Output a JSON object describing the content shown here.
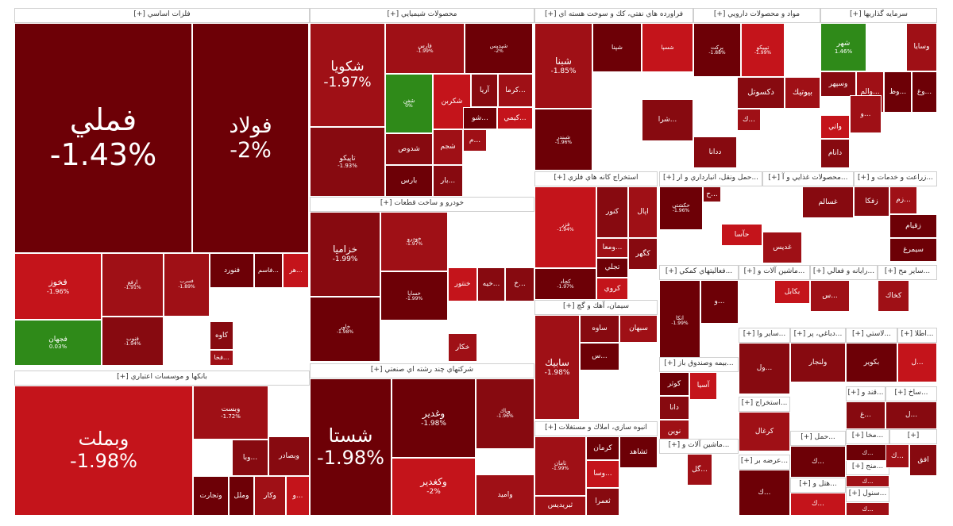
{
  "colors": {
    "deep": "#6d0006",
    "dark": "#870a10",
    "mid": "#9f1016",
    "bright": "#c4141b",
    "up": "#2f8a19",
    "black": "#4a0006",
    "pale": "#ffffff"
  },
  "chart_data": {
    "type": "treemap",
    "title": "",
    "value_unit": "% daily change",
    "sectors": [
      {
        "name": "فلزات اساسي [+]",
        "tiles": [
          {
            "symbol": "فملي",
            "change": "-1.43%"
          },
          {
            "symbol": "فولاد",
            "change": "-2%"
          },
          {
            "symbol": "فخوز",
            "change": "-1.96%"
          },
          {
            "symbol": "فجهان",
            "change": "0.03%"
          },
          {
            "symbol": "ارفع",
            "change": "-1.91%"
          },
          {
            "symbol": "فنوب",
            "change": "-1.94%"
          },
          {
            "symbol": "فسرب",
            "change": "-1.89%"
          },
          {
            "symbol": "فنورد",
            "change": ""
          },
          {
            "symbol": "...فاسم",
            "change": ""
          },
          {
            "symbol": "...هر",
            "change": ""
          },
          {
            "symbol": "كاوه",
            "change": ""
          },
          {
            "symbol": "...فخا",
            "change": ""
          }
        ]
      },
      {
        "name": "بانكها و موسسات اعتباري [+]",
        "tiles": [
          {
            "symbol": "وبملت",
            "change": "-1.98%"
          },
          {
            "symbol": "وبصادر",
            "change": ""
          },
          {
            "symbol": "وبست",
            "change": "-1.72%"
          },
          {
            "symbol": "...وبا",
            "change": ""
          },
          {
            "symbol": "وكار",
            "change": ""
          },
          {
            "symbol": "وتجارت",
            "change": ""
          },
          {
            "symbol": "وملل",
            "change": ""
          },
          {
            "symbol": "...و",
            "change": ""
          }
        ]
      },
      {
        "name": "محصولات شيميايي [+]",
        "tiles": [
          {
            "symbol": "شكويا",
            "change": "-1.97%"
          },
          {
            "symbol": "تاپيكو",
            "change": "-1.93%"
          },
          {
            "symbol": "فارس",
            "change": "-1.99%"
          },
          {
            "symbol": "شپديس",
            "change": "-2%"
          },
          {
            "symbol": "شفن",
            "change": "0%"
          },
          {
            "symbol": "شكربن",
            "change": ""
          },
          {
            "symbol": "آريا",
            "change": ""
          },
          {
            "symbol": "...كرما",
            "change": ""
          },
          {
            "symbol": "شدوص",
            "change": ""
          },
          {
            "symbol": "شجم",
            "change": ""
          },
          {
            "symbol": "بارس",
            "change": ""
          },
          {
            "symbol": "...شو",
            "change": ""
          },
          {
            "symbol": "...كيمي",
            "change": ""
          },
          {
            "symbol": "...بار",
            "change": ""
          },
          {
            "symbol": "...م",
            "change": ""
          }
        ]
      },
      {
        "name": "فراورده هاي نفتي، كك و سوخت هسته اي [+]",
        "tiles": [
          {
            "symbol": "شبنا",
            "change": "-1.85%"
          },
          {
            "symbol": "شبندر",
            "change": "-1.96%"
          },
          {
            "symbol": "شپنا",
            "change": ""
          },
          {
            "symbol": "شسپا",
            "change": ""
          },
          {
            "symbol": "...شرا",
            "change": ""
          }
        ]
      },
      {
        "name": "مواد و محصولات دارويي [+]",
        "tiles": [
          {
            "symbol": "بركت",
            "change": "-1.88%"
          },
          {
            "symbol": "تيپيكو",
            "change": "-1.99%"
          },
          {
            "symbol": "دكسوتل",
            "change": ""
          },
          {
            "symbol": "بيوتيك",
            "change": ""
          },
          {
            "symbol": "ددانا",
            "change": ""
          },
          {
            "symbol": "...ك",
            "change": ""
          }
        ]
      },
      {
        "name": "سرمايه گذاريها [+]",
        "tiles": [
          {
            "symbol": "شهر",
            "change": "1.46%"
          },
          {
            "symbol": "وسايا",
            "change": ""
          },
          {
            "symbol": "وسپهر",
            "change": ""
          },
          {
            "symbol": "...والم",
            "change": ""
          },
          {
            "symbol": "...وظ",
            "change": ""
          },
          {
            "symbol": "...وغ",
            "change": ""
          },
          {
            "symbol": "واتي",
            "change": ""
          },
          {
            "symbol": "دانام",
            "change": ""
          },
          {
            "symbol": "...و",
            "change": ""
          }
        ]
      },
      {
        "name": "خودرو و ساخت قطعات [+]",
        "tiles": [
          {
            "symbol": "خزاميا",
            "change": "-1.99%"
          },
          {
            "symbol": "خودرو",
            "change": "-1.97%"
          },
          {
            "symbol": "خاور",
            "change": "-1.98%"
          },
          {
            "symbol": "خساپا",
            "change": "-1.99%"
          },
          {
            "symbol": "خنتور",
            "change": ""
          },
          {
            "symbol": "...خيه",
            "change": ""
          },
          {
            "symbol": "خكار",
            "change": ""
          },
          {
            "symbol": "...خ",
            "change": ""
          }
        ]
      },
      {
        "name": "شركتهاي چند رشته اي صنعتي [+]",
        "tiles": [
          {
            "symbol": "شستا",
            "change": "-1.98%"
          },
          {
            "symbol": "وغدير",
            "change": "-1.98%"
          },
          {
            "symbol": "وكغدير",
            "change": "-2%"
          },
          {
            "symbol": "وپاك",
            "change": "-1.96%"
          },
          {
            "symbol": "واميد",
            "change": ""
          }
        ]
      },
      {
        "name": "استخراج كانه هاي فلزي [+]",
        "tiles": [
          {
            "symbol": "فزر",
            "change": "-1.94%"
          },
          {
            "symbol": "كنور",
            "change": ""
          },
          {
            "symbol": "اپال",
            "change": ""
          },
          {
            "symbol": "كگهر",
            "change": ""
          },
          {
            "symbol": "...ومعا",
            "change": ""
          },
          {
            "symbol": "كچاد",
            "change": "-1.97%"
          },
          {
            "symbol": "تجلي",
            "change": ""
          },
          {
            "symbol": "كروي",
            "change": ""
          }
        ]
      },
      {
        "name": "سيمان، آهك و گچ [+]",
        "tiles": [
          {
            "symbol": "سابيك",
            "change": "-1.98%"
          },
          {
            "symbol": "ساوه",
            "change": ""
          },
          {
            "symbol": "سبهان",
            "change": ""
          },
          {
            "symbol": "...س",
            "change": ""
          }
        ]
      },
      {
        "name": "انبوه سازي، املاك و مستغلات [+]",
        "tiles": [
          {
            "symbol": "ثامان",
            "change": "-1.99%"
          },
          {
            "symbol": "كرمان",
            "change": ""
          },
          {
            "symbol": "ثشاهد",
            "change": ""
          },
          {
            "symbol": "...وسا",
            "change": ""
          },
          {
            "symbol": "ثعمرا",
            "change": ""
          },
          {
            "symbol": "ثبريديس",
            "change": ""
          }
        ]
      },
      {
        "name": "...حمل ونقل، انبارداري و ار [+]",
        "tiles": [
          {
            "symbol": "حكشتي",
            "change": "-1.96%"
          },
          {
            "symbol": "حآسا",
            "change": ""
          },
          {
            "symbol": "...ح",
            "change": ""
          }
        ]
      },
      {
        "name": "...محصولات غذايي و آ [+]",
        "tiles": [
          {
            "symbol": "غسالم",
            "change": ""
          },
          {
            "symbol": "غديس",
            "change": ""
          }
        ]
      },
      {
        "name": "...زراعت و خدمات و [+]",
        "tiles": [
          {
            "symbol": "زفكا",
            "change": ""
          },
          {
            "symbol": "...زم",
            "change": ""
          },
          {
            "symbol": "زقيام",
            "change": ""
          },
          {
            "symbol": "سيمرغ",
            "change": ""
          }
        ]
      },
      {
        "name": "...فعاليتهاي كمكي [+]",
        "tiles": [
          {
            "symbol": "اتكا",
            "change": "-1.99%"
          },
          {
            "symbol": "...و",
            "change": ""
          }
        ]
      },
      {
        "name": "...ماشين آلات و [+]",
        "tiles": [
          {
            "symbol": "بكابل",
            "change": ""
          }
        ]
      },
      {
        "name": "...رايانه و فعالي [+]",
        "tiles": [
          {
            "symbol": "...س",
            "change": ""
          }
        ]
      },
      {
        "name": "...ساير مح [+]",
        "tiles": [
          {
            "symbol": "كخاك",
            "change": ""
          }
        ]
      },
      {
        "name": "...بيمه وصندوق باز [+]",
        "tiles": [
          {
            "symbol": "كوثر",
            "change": ""
          },
          {
            "symbol": "آسيا",
            "change": ""
          },
          {
            "symbol": "دانا",
            "change": ""
          },
          {
            "symbol": "نوين",
            "change": ""
          }
        ]
      },
      {
        "name": "...ساير وا [+]",
        "tiles": [
          {
            "symbol": "...ول",
            "change": ""
          }
        ]
      },
      {
        "name": "...دباغي، پر [+]",
        "tiles": [
          {
            "symbol": "ولنجار",
            "change": ""
          }
        ]
      },
      {
        "name": "...لاستي [+]",
        "tiles": [
          {
            "symbol": "بكوير",
            "change": ""
          }
        ]
      },
      {
        "name": "...اطلا [+]",
        "tiles": [
          {
            "symbol": "...ل",
            "change": ""
          }
        ]
      },
      {
        "name": "...استخراج [+]",
        "tiles": [
          {
            "symbol": "كرغال",
            "change": ""
          }
        ]
      },
      {
        "name": "...ماشين آلات و [+]",
        "tiles": [
          {
            "symbol": "...گل",
            "change": ""
          }
        ]
      },
      {
        "name": "...عرضه بر [+]",
        "tiles": [
          {
            "symbol": "...ك",
            "change": ""
          }
        ]
      },
      {
        "name": "...قند و [+]",
        "tiles": [
          {
            "symbol": "...غ",
            "change": ""
          }
        ]
      },
      {
        "name": "...ساخ [+]",
        "tiles": [
          {
            "symbol": "...ل",
            "change": ""
          }
        ]
      },
      {
        "name": "...حمل [+]",
        "tiles": [
          {
            "symbol": "...ك",
            "change": ""
          }
        ]
      },
      {
        "name": "...هتل و [+]",
        "tiles": [
          {
            "symbol": "...ك",
            "change": ""
          }
        ]
      },
      {
        "name": "...سنول [+]",
        "tiles": [
          {
            "symbol": "...ك",
            "change": ""
          }
        ]
      },
      {
        "name": "...منج [+]",
        "tiles": [
          {
            "symbol": "...ك",
            "change": ""
          }
        ]
      },
      {
        "name": "...مخا [+]",
        "tiles": [
          {
            "symbol": "...ك",
            "change": ""
          }
        ]
      },
      {
        "name": "[+]",
        "tiles": [
          {
            "symbol": "افق",
            "change": ""
          },
          {
            "symbol": "...ك",
            "change": ""
          }
        ]
      }
    ]
  }
}
